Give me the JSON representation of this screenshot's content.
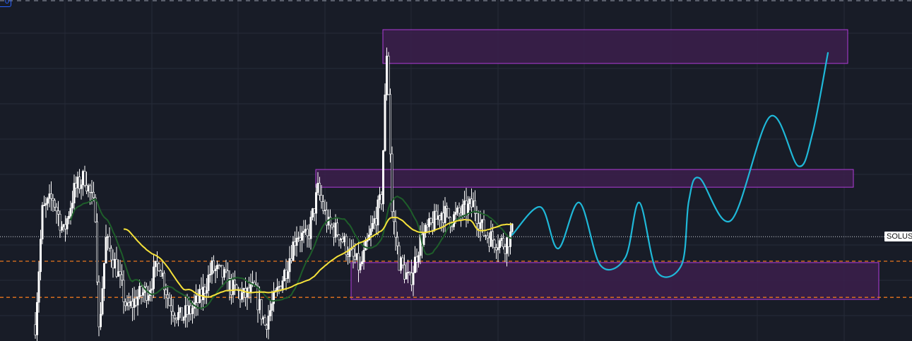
{
  "chart_data": {
    "type": "candlestick",
    "symbol_label": "SOLUS",
    "corner_label": "0",
    "ylim": [
      0,
      100
    ],
    "xlim": [
      -10,
      248.2
    ],
    "grid": true,
    "colors": {
      "background": "#181c27",
      "candle": "#ffffff",
      "ma_fast": "#1e5e2a",
      "ma_slow": "#f5e13a",
      "zone_fill": "#3a1f4a",
      "zone_border": "#b03cd8",
      "projection": "#1fb8d8",
      "support_line": "#e8761e",
      "current_price_line": "#cfd3dc"
    },
    "close_path": [
      [
        0,
        4.8
      ],
      [
        2,
        37.9
      ],
      [
        5,
        42.0
      ],
      [
        8,
        31.7
      ],
      [
        11,
        44.1
      ],
      [
        14,
        48.2
      ],
      [
        17,
        37.9
      ],
      [
        18,
        2.7
      ],
      [
        20,
        29.6
      ],
      [
        23,
        21.3
      ],
      [
        26,
        8.9
      ],
      [
        29,
        13.0
      ],
      [
        32,
        15.1
      ],
      [
        35,
        23.4
      ],
      [
        38,
        11.0
      ],
      [
        41,
        6.8
      ],
      [
        44,
        8.9
      ],
      [
        47,
        13.0
      ],
      [
        50,
        21.3
      ],
      [
        53,
        19.3
      ],
      [
        56,
        15.1
      ],
      [
        59,
        13.0
      ],
      [
        62,
        15.1
      ],
      [
        65,
        4.8
      ],
      [
        68,
        13.0
      ],
      [
        71,
        21.3
      ],
      [
        74,
        31.7
      ],
      [
        77,
        29.6
      ],
      [
        80,
        44.1
      ],
      [
        83,
        33.7
      ],
      [
        86,
        31.7
      ],
      [
        89,
        25.5
      ],
      [
        92,
        21.3
      ],
      [
        95,
        31.7
      ],
      [
        98,
        42.0
      ],
      [
        99.6,
        87.6
      ],
      [
        101,
        37.9
      ],
      [
        103,
        23.4
      ],
      [
        106,
        17.2
      ],
      [
        109,
        29.6
      ],
      [
        112,
        33.7
      ],
      [
        115,
        37.9
      ],
      [
        118,
        35.8
      ],
      [
        121,
        37.9
      ],
      [
        124,
        40.0
      ],
      [
        127,
        31.7
      ],
      [
        130,
        29.6
      ],
      [
        133,
        28.6
      ],
      [
        135,
        31.7
      ]
    ],
    "zones": [
      {
        "x": [
          98.4,
          230
        ],
        "y": [
          81.4,
          91.3
        ]
      },
      {
        "x": [
          79.4,
          231.6
        ],
        "y": [
          45.1,
          50.3
        ]
      },
      {
        "x": [
          89.4,
          238.8
        ],
        "y": [
          12.2,
          23.0
        ]
      }
    ],
    "horizontal_lines": [
      {
        "kind": "support",
        "y": 23.4
      },
      {
        "kind": "support",
        "y": 12.8
      },
      {
        "kind": "current_price",
        "y": 30.6
      }
    ],
    "projection_path": [
      [
        135,
        31.1
      ],
      [
        143,
        39.3
      ],
      [
        148,
        27.1
      ],
      [
        154,
        40.6
      ],
      [
        160,
        22.2
      ],
      [
        167,
        24.4
      ],
      [
        171,
        40.6
      ],
      [
        176,
        20.3
      ],
      [
        183,
        22.4
      ],
      [
        185,
        41.0
      ],
      [
        188,
        47.8
      ],
      [
        197,
        35.4
      ],
      [
        208,
        65.8
      ],
      [
        216,
        51.3
      ],
      [
        220,
        60.7
      ],
      [
        224.4,
        84.5
      ]
    ]
  }
}
